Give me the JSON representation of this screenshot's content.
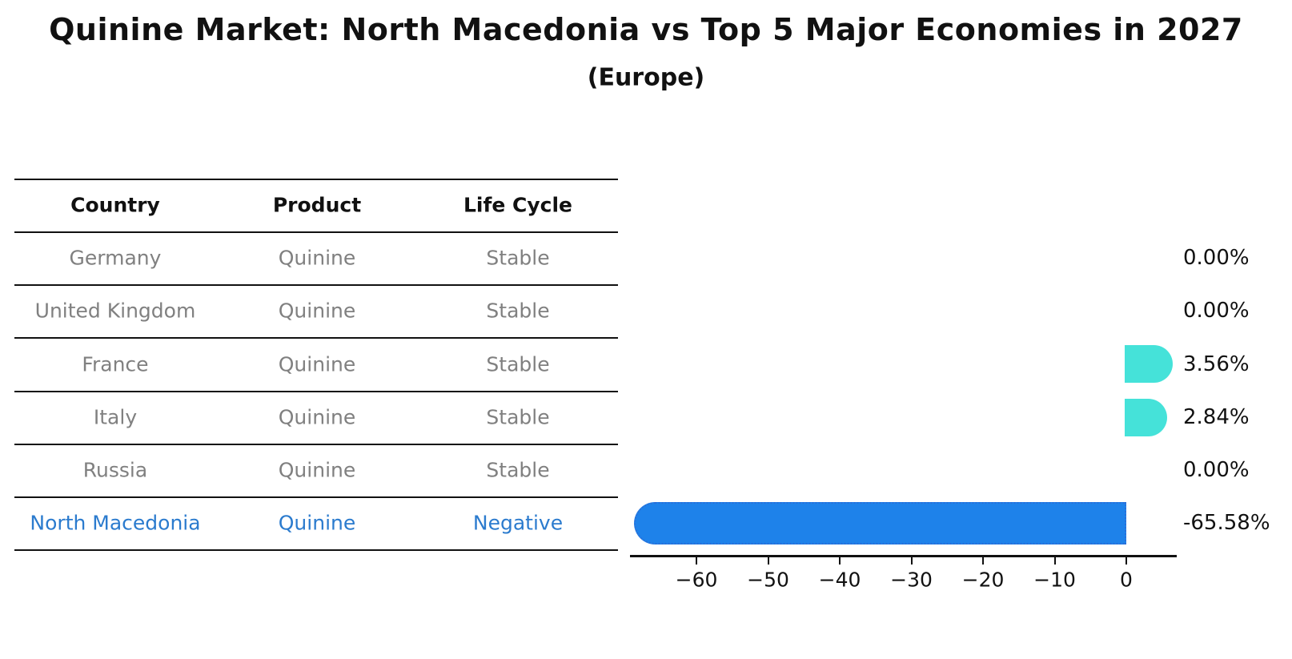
{
  "header": {
    "title": "Quinine Market: North Macedonia vs Top 5 Major Economies in 2027",
    "subtitle": "(Europe)"
  },
  "table": {
    "columns": [
      "Country",
      "Product",
      "Life Cycle"
    ],
    "rows": [
      {
        "country": "Germany",
        "product": "Quinine",
        "life_cycle": "Stable",
        "highlight": false
      },
      {
        "country": "United Kingdom",
        "product": "Quinine",
        "life_cycle": "Stable",
        "highlight": false
      },
      {
        "country": "France",
        "product": "Quinine",
        "life_cycle": "Stable",
        "highlight": false
      },
      {
        "country": "Italy",
        "product": "Quinine",
        "life_cycle": "Stable",
        "highlight": false
      },
      {
        "country": "Russia",
        "product": "Quinine",
        "life_cycle": "Stable",
        "highlight": false
      },
      {
        "country": "North Macedonia",
        "product": "Quinine",
        "life_cycle": "Negative",
        "highlight": true
      }
    ]
  },
  "chart_data": {
    "type": "bar",
    "orientation": "horizontal",
    "title": "Quinine Market: North Macedonia vs Top 5 Major Economies in 2027",
    "subtitle": "(Europe)",
    "categories": [
      "Germany",
      "United Kingdom",
      "France",
      "Italy",
      "Russia",
      "North Macedonia"
    ],
    "values": [
      0.0,
      0.0,
      3.56,
      2.84,
      0.0,
      -65.58
    ],
    "value_labels": [
      "0.00%",
      "0.00%",
      "3.56%",
      "2.84%",
      "0.00%",
      "-65.58%"
    ],
    "unit": "%",
    "xlabel": "",
    "ylabel": "",
    "xlim": [
      -69.3,
      7.0
    ],
    "xticks": [
      -60,
      -50,
      -40,
      -30,
      -20,
      -10,
      0
    ],
    "xtick_labels": [
      "−60",
      "−50",
      "−40",
      "−30",
      "−20",
      "−10",
      "0"
    ],
    "grid": false,
    "legend": false
  },
  "colors": {
    "positive_bar": "#45E2D9",
    "negative_bar": "#1E82EA",
    "negative_bar_border": "#2A6FD8",
    "highlight_text": "#2B7BCE",
    "muted_text": "#808080",
    "heading_text": "#111111",
    "background": "#FFFFFF"
  }
}
